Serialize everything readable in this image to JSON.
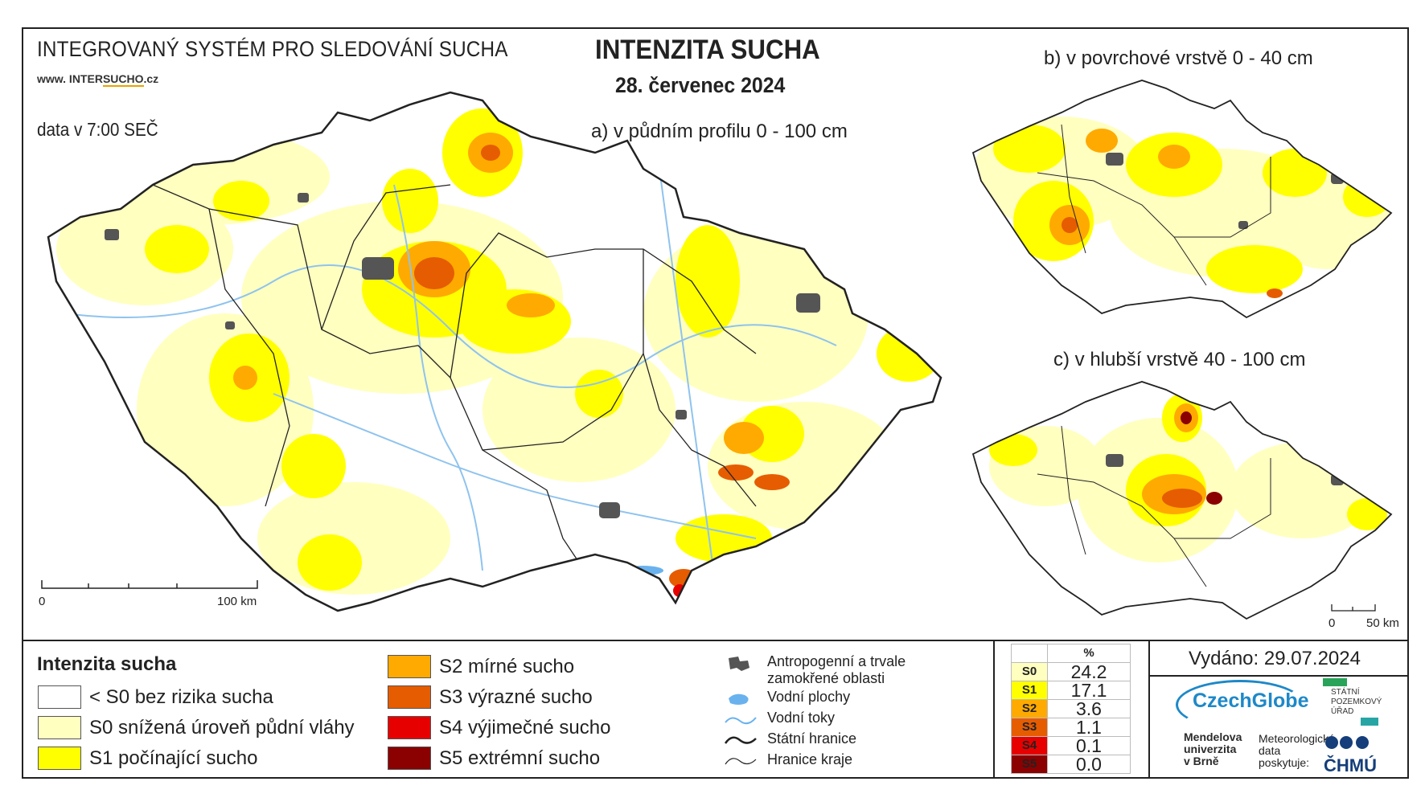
{
  "header": {
    "system_name": "INTEGROVANÝ SYSTÉM PRO SLEDOVÁNÍ SUCHA",
    "url_prefix": "www. INTER",
    "url_highlight": "SUCHO",
    "url_suffix": ".cz",
    "data_time": "data v 7:00 SEČ",
    "title": "INTENZITA SUCHA",
    "date": "28. červenec 2024"
  },
  "maps": {
    "main": {
      "caption": "a) v půdním profilu 0 - 100 cm",
      "scale_start": "0",
      "scale_end": "100 km"
    },
    "surface": {
      "caption": "b) v povrchové vrstvě 0 - 40 cm"
    },
    "deep": {
      "caption": "c) v hlubší vrstvě 40 - 100 cm",
      "scale_start": "0",
      "scale_end": "50 km"
    }
  },
  "legend": {
    "title": "Intenzita sucha",
    "classes": [
      {
        "label": "< S0 bez rizika sucha",
        "color": "#ffffff"
      },
      {
        "label": "S0 snížená úroveň půdní vláhy",
        "color": "#ffffc0"
      },
      {
        "label": "S1 počínající sucho",
        "color": "#ffff00"
      },
      {
        "label": "S2 mírné sucho",
        "color": "#ffaa00"
      },
      {
        "label": "S3 výrazné sucho",
        "color": "#e65c00"
      },
      {
        "label": "S4 výjimečné sucho",
        "color": "#e60000"
      },
      {
        "label": "S5 extrémní sucho",
        "color": "#8b0000"
      }
    ],
    "symbols": [
      {
        "label": "Antropogenní a trvale zamokřené oblasti",
        "icon": "urban-area-icon"
      },
      {
        "label": "Vodní plochy",
        "icon": "water-body-icon"
      },
      {
        "label": "Vodní toky",
        "icon": "stream-icon"
      },
      {
        "label": "Státní hranice",
        "icon": "state-border-icon"
      },
      {
        "label": "Hranice kraje",
        "icon": "region-border-icon"
      }
    ]
  },
  "stats": {
    "header": "%",
    "rows": [
      {
        "class": "S0",
        "value": "24.2",
        "color": "#ffffc0",
        "text": "#000"
      },
      {
        "class": "S1",
        "value": "17.1",
        "color": "#ffff00",
        "text": "#000"
      },
      {
        "class": "S2",
        "value": "3.6",
        "color": "#ffaa00",
        "text": "#000"
      },
      {
        "class": "S3",
        "value": "1.1",
        "color": "#e65c00",
        "text": "#000"
      },
      {
        "class": "S4",
        "value": "0.1",
        "color": "#e60000",
        "text": "#000"
      },
      {
        "class": "S5",
        "value": "0.0",
        "color": "#8b0000",
        "text": "#000"
      }
    ]
  },
  "footer": {
    "issued": "Vydáno: 29.07.2024",
    "czechglobe": "CzechGlobe",
    "spu": [
      "STÁTNÍ",
      "POZEMKOVÝ",
      "ÚŘAD"
    ],
    "mendel": [
      "Mendelova",
      "univerzita",
      "v Brně"
    ],
    "meteo": [
      "Meteorologická",
      "data",
      "poskytuje:"
    ],
    "chmu": "ČHMÚ"
  }
}
